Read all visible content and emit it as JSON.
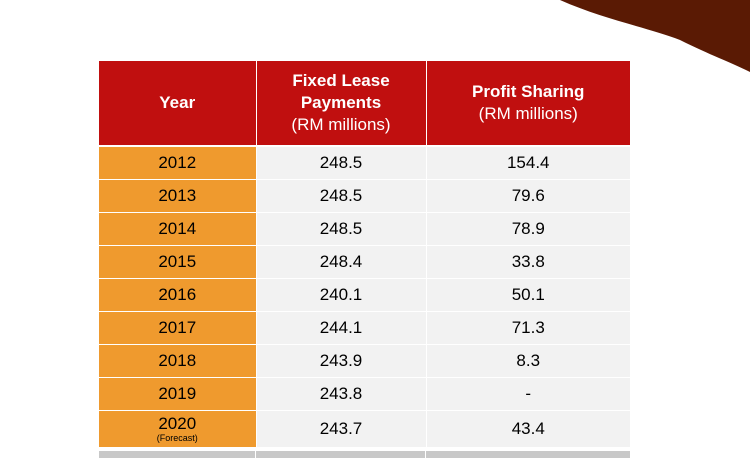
{
  "headers": {
    "year": "Year",
    "fixed_title": "Fixed Lease Payments",
    "fixed_unit": "(RM millions)",
    "profit_title": "Profit Sharing",
    "profit_unit": "(RM millions)"
  },
  "rows": [
    {
      "year": "2012",
      "fixed": "248.5",
      "profit": "154.4"
    },
    {
      "year": "2013",
      "fixed": "248.5",
      "profit": "79.6"
    },
    {
      "year": "2014",
      "fixed": "248.5",
      "profit": "78.9"
    },
    {
      "year": "2015",
      "fixed": "248.4",
      "profit": "33.8"
    },
    {
      "year": "2016",
      "fixed": "240.1",
      "profit": "50.1"
    },
    {
      "year": "2017",
      "fixed": "244.1",
      "profit": "71.3"
    },
    {
      "year": "2018",
      "fixed": "243.9",
      "profit": "8.3"
    },
    {
      "year": "2019",
      "fixed": "243.8",
      "profit": "-"
    },
    {
      "year": "2020",
      "note": "(Forecast)",
      "fixed": "243.7",
      "profit": "43.4"
    }
  ],
  "colors": {
    "header_red": "#c00f0f",
    "year_orange": "#ef9a2e",
    "cell_gray": "#f2f2f2",
    "corner_brown": "#5a1a04"
  }
}
